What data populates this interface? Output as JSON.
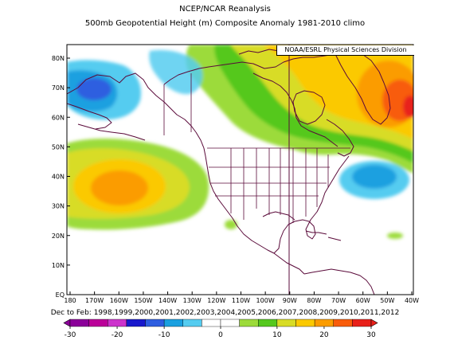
{
  "header": {
    "title": "NCEP/NCAR Reanalysis",
    "subtitle": "500mb Geopotential Height (m) Composite Anomaly 1981-2010 climo",
    "credit": "NOAA/ESRL Physical Sciences Division"
  },
  "axes": {
    "lat_labels": [
      "80N",
      "70N",
      "60N",
      "50N",
      "40N",
      "30N",
      "20N",
      "10N",
      "EQ"
    ],
    "lon_labels": [
      "180",
      "170W",
      "160W",
      "150W",
      "140W",
      "130W",
      "120W",
      "110W",
      "100W",
      "90W",
      "80W",
      "70W",
      "60W",
      "50W",
      "40W"
    ]
  },
  "period_label": "Dec to Feb: 1998,1999,2000,2001,2002,2003,2004,2005,2006,2007,2008,2009,2010,2011,2012",
  "colorbar": {
    "tick_labels": [
      "-30",
      "-20",
      "-10",
      "0",
      "10",
      "20",
      "30"
    ],
    "colors": [
      "#8b0099",
      "#bb0099",
      "#cc33cc",
      "#1818cc",
      "#2e5ee0",
      "#1aa0e0",
      "#55ccf0",
      "#ffffff",
      "#ffffff",
      "#9cdb3a",
      "#55c81e",
      "#d8dc26",
      "#fbc900",
      "#fb9c00",
      "#f85c0a",
      "#e8201a"
    ]
  },
  "map": {
    "lon_range": [
      -180,
      -40
    ],
    "lat_range": [
      0,
      85
    ],
    "anomaly_features": [
      {
        "name": "negative anomaly over Bering Sea / eastern Siberia",
        "sign": "negative",
        "min_level": -10
      },
      {
        "name": "positive anomaly over central North Pacific",
        "sign": "positive",
        "max_level": 20
      },
      {
        "name": "positive anomaly over Canada and Greenland",
        "sign": "positive",
        "max_level": 30
      },
      {
        "name": "negative anomaly over western North Atlantic",
        "sign": "negative",
        "min_level": -10
      },
      {
        "name": "negative anomaly over Gulf of Alaska / Alaska",
        "sign": "negative",
        "min_level": -10
      }
    ]
  }
}
